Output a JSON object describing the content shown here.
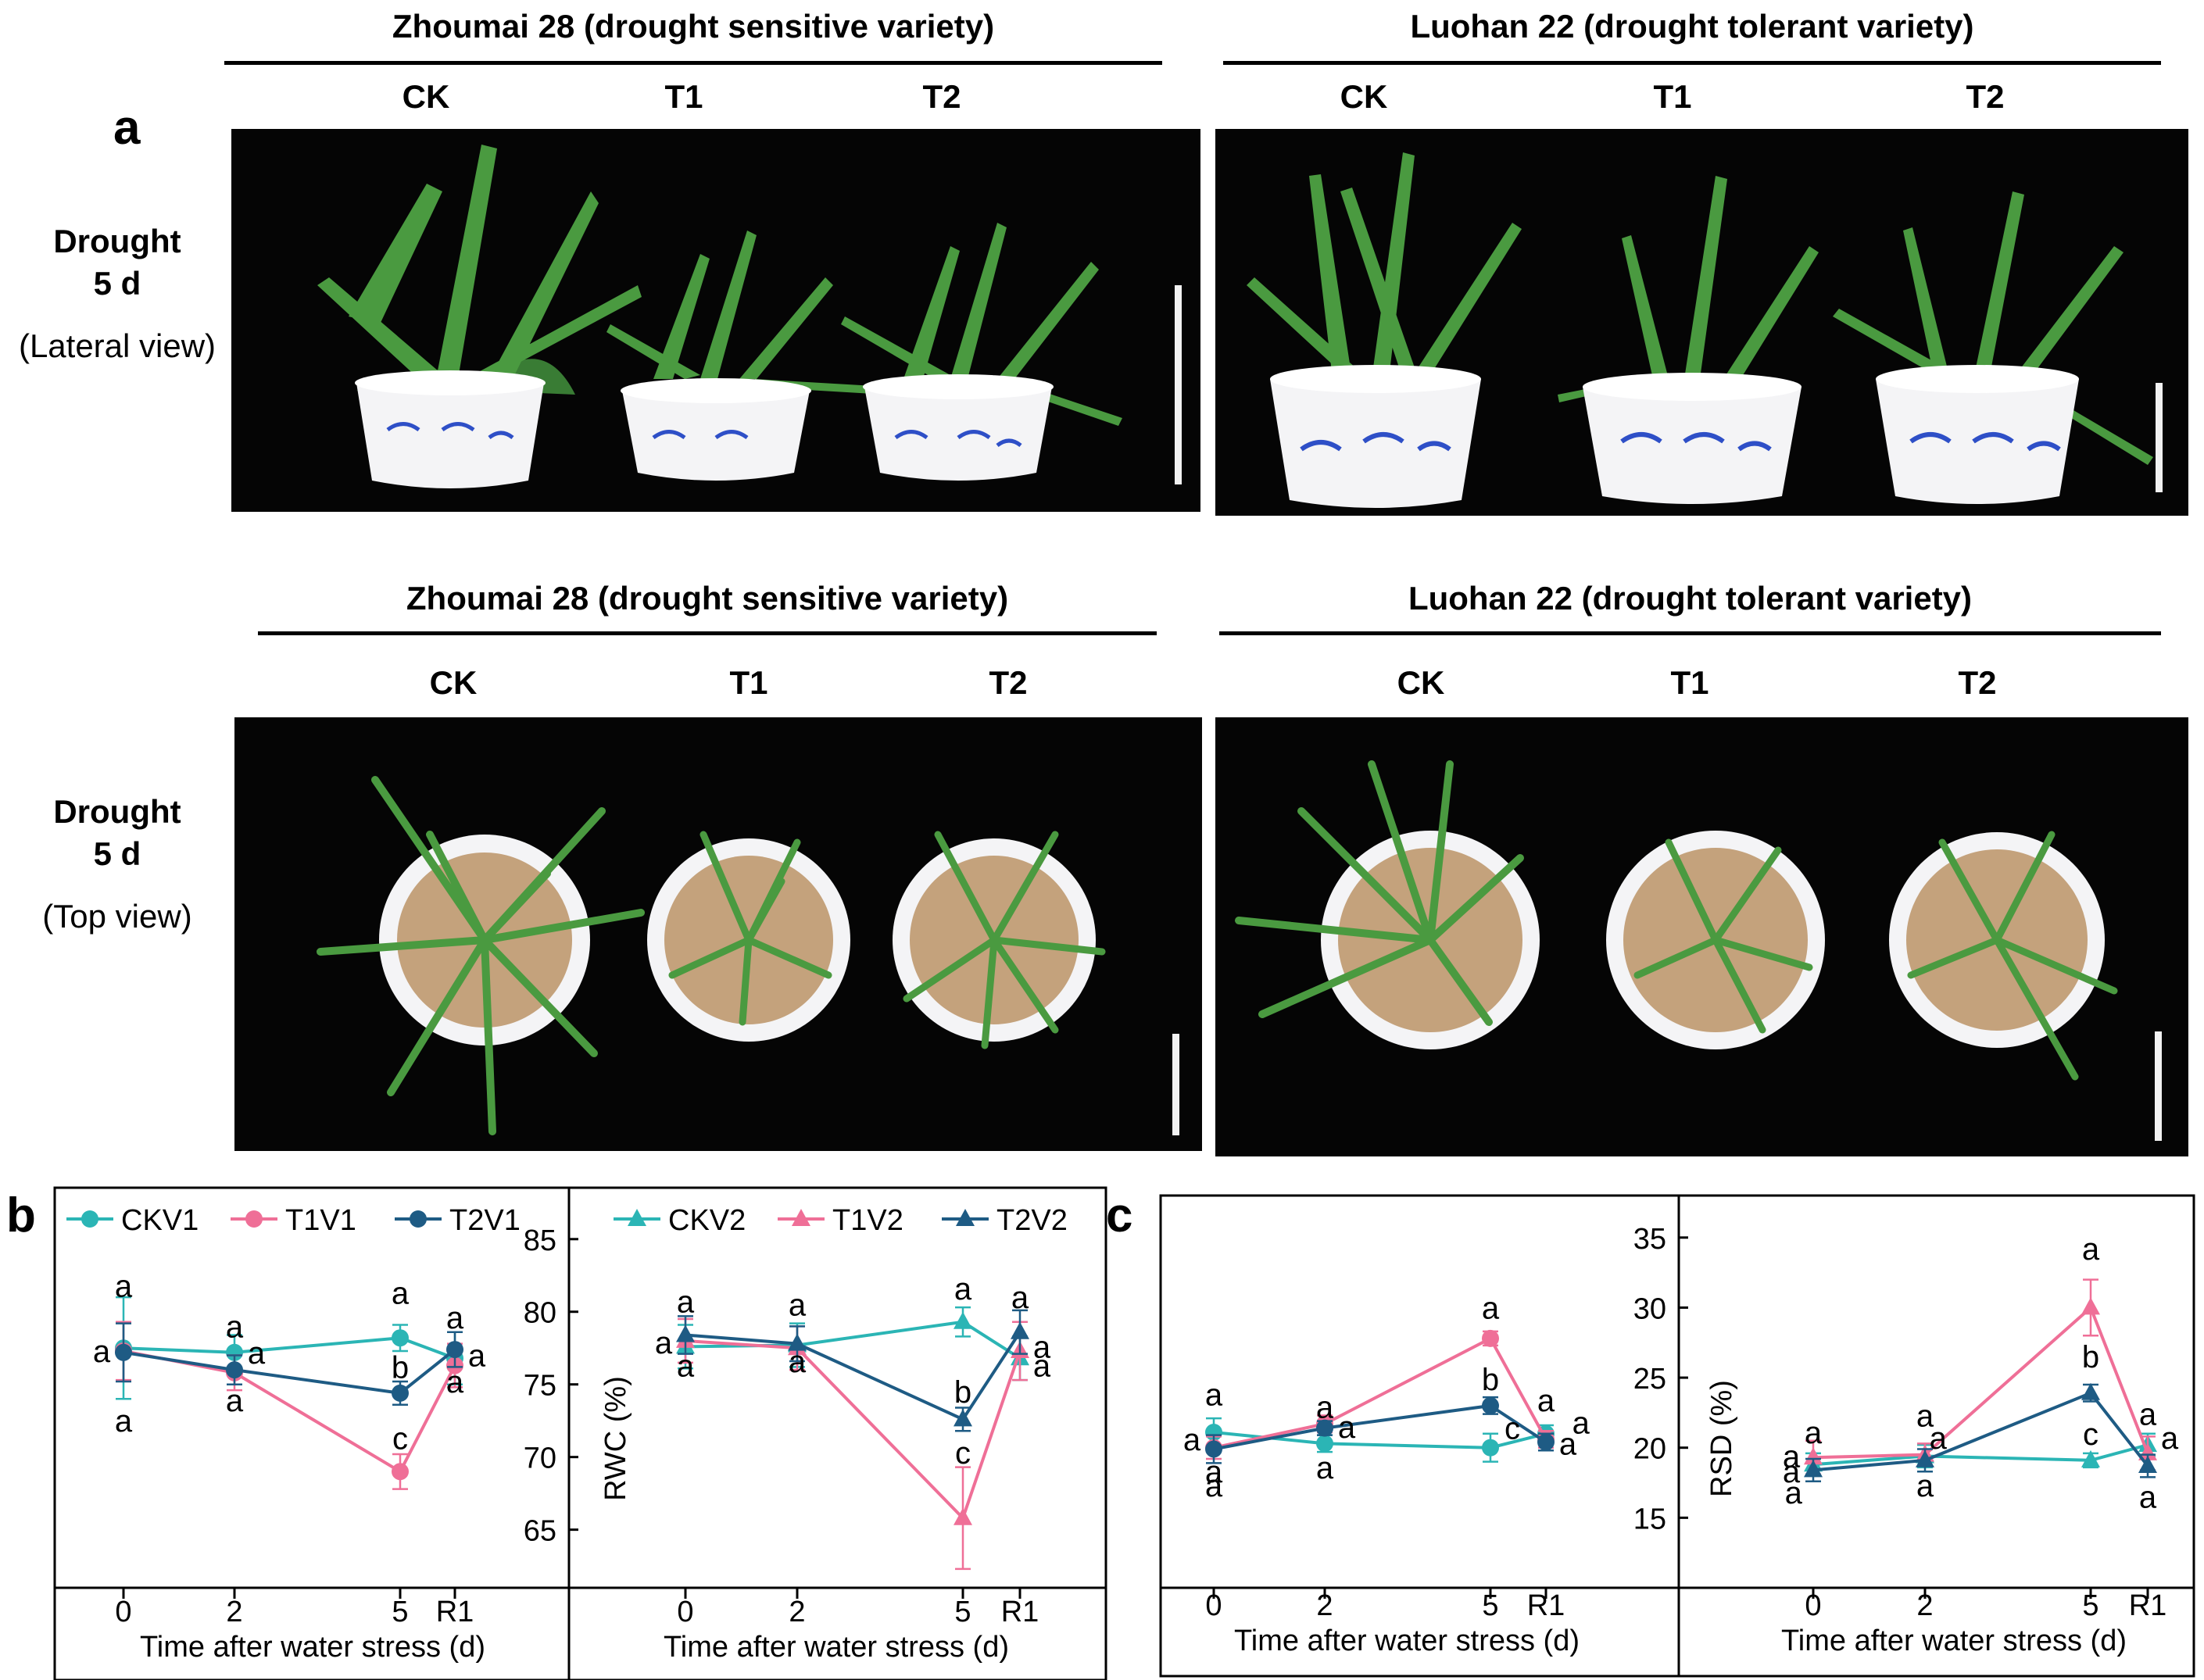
{
  "panel_a": {
    "letter": "a",
    "groups": [
      {
        "title": "Zhoumai 28 (drought sensitive variety)",
        "cols": [
          "CK",
          "T1",
          "T2"
        ]
      },
      {
        "title": "Luohan 22 (drought tolerant variety)",
        "cols": [
          "CK",
          "T1",
          "T2"
        ]
      }
    ],
    "rows": [
      {
        "label": "Drought",
        "days": "5 d",
        "view": "(Lateral view)"
      },
      {
        "label": "Drought",
        "days": "5 d",
        "view": "(Top view)"
      }
    ]
  },
  "panel_b": {
    "letter": "b"
  },
  "panel_c": {
    "letter": "c"
  },
  "colors": {
    "ck": "#2bb5b5",
    "t1": "#ef6f97",
    "t2": "#1e5b84",
    "leaf": "#3f8a3a",
    "soil": "#c4a27c",
    "pot_pattern": "#2e4fc7"
  },
  "chart_data": [
    {
      "type": "line",
      "id": "b-left",
      "categories": [
        "0",
        "2",
        "5",
        "R1"
      ],
      "xlabel": "Time after water stress (d)",
      "ylabel": "",
      "ylim": [
        61,
        88
      ],
      "yticks": [],
      "legend": [
        "CKV1",
        "T1V1",
        "T2V1"
      ],
      "marker": "circle",
      "series": [
        {
          "name": "CKV1",
          "color": "#2bb5b5",
          "values": [
            77.5,
            77.2,
            78.2,
            76.8
          ],
          "err": [
            3.5,
            1.2,
            0.9,
            1.8
          ]
        },
        {
          "name": "T1V1",
          "color": "#ef6f97",
          "values": [
            77.3,
            75.8,
            69.0,
            76.3
          ],
          "err": [
            2.0,
            1.2,
            1.2,
            1.5
          ]
        },
        {
          "name": "T2V1",
          "color": "#1e5b84",
          "values": [
            77.2,
            76.0,
            74.4,
            77.4
          ],
          "err": [
            2.0,
            1.0,
            0.8,
            1.2
          ]
        }
      ],
      "letters": [
        {
          "text": "a",
          "cat": 0,
          "y": 81.8
        },
        {
          "text": "a",
          "cat": 0,
          "y": 72.5
        },
        {
          "text": "a",
          "cat": 0,
          "y": 77.3,
          "dx": -1
        },
        {
          "text": "a",
          "cat": 1,
          "y": 79.0
        },
        {
          "text": "a",
          "cat": 1,
          "y": 73.9
        },
        {
          "text": "a",
          "cat": 1,
          "y": 77.2,
          "dx": 1
        },
        {
          "text": "a",
          "cat": 2,
          "y": 81.3
        },
        {
          "text": "b",
          "cat": 2,
          "y": 76.2
        },
        {
          "text": "c",
          "cat": 2,
          "y": 71.3
        },
        {
          "text": "a",
          "cat": 3,
          "y": 79.6
        },
        {
          "text": "a",
          "cat": 3,
          "y": 77.0,
          "dx": 1
        },
        {
          "text": "a",
          "cat": 3,
          "y": 75.2
        }
      ]
    },
    {
      "type": "line",
      "id": "b-right",
      "categories": [
        "0",
        "2",
        "5",
        "R1"
      ],
      "xlabel": "Time after water stress (d)",
      "ylabel": "RWC (%)",
      "ylim": [
        61,
        88
      ],
      "yticks": [
        65,
        70,
        75,
        80,
        85
      ],
      "legend": [
        "CKV2",
        "T1V2",
        "T2V2"
      ],
      "marker": "triangle",
      "series": [
        {
          "name": "CKV2",
          "color": "#2bb5b5",
          "values": [
            77.6,
            77.7,
            79.3,
            76.8
          ],
          "err": [
            1.5,
            1.5,
            1.0,
            1.5
          ]
        },
        {
          "name": "T1V2",
          "color": "#ef6f97",
          "values": [
            78.0,
            77.5,
            65.8,
            77.3
          ],
          "err": [
            1.5,
            1.5,
            3.5,
            2.0
          ]
        },
        {
          "name": "T2V2",
          "color": "#1e5b84",
          "values": [
            78.4,
            77.8,
            72.6,
            78.6
          ],
          "err": [
            1.3,
            1.2,
            0.8,
            1.5
          ]
        }
      ],
      "letters": [
        {
          "text": "a",
          "cat": 0,
          "y": 80.7
        },
        {
          "text": "a",
          "cat": 0,
          "y": 77.9,
          "dx": -1
        },
        {
          "text": "a",
          "cat": 0,
          "y": 76.3
        },
        {
          "text": "a",
          "cat": 1,
          "y": 80.5
        },
        {
          "text": "a",
          "cat": 1,
          "y": 76.6
        },
        {
          "text": "a",
          "cat": 2,
          "y": 81.6
        },
        {
          "text": "b",
          "cat": 2,
          "y": 74.5
        },
        {
          "text": "c",
          "cat": 2,
          "y": 70.3
        },
        {
          "text": "a",
          "cat": 3,
          "y": 81.0
        },
        {
          "text": "a",
          "cat": 3,
          "y": 77.6,
          "dx": 1
        },
        {
          "text": "a",
          "cat": 3,
          "y": 76.3,
          "dx": 1
        }
      ]
    },
    {
      "type": "line",
      "id": "c-left",
      "categories": [
        "0",
        "2",
        "5",
        "R1"
      ],
      "xlabel": "Time after water stress (d)",
      "ylabel": "",
      "ylim": [
        10,
        38
      ],
      "yticks": [],
      "legend": [],
      "marker": "circle",
      "series": [
        {
          "name": "CKV1",
          "color": "#2bb5b5",
          "values": [
            21.1,
            20.3,
            20.0,
            21.0
          ],
          "err": [
            1.0,
            0.6,
            1.0,
            0.6
          ]
        },
        {
          "name": "T1V1",
          "color": "#ef6f97",
          "values": [
            20.0,
            21.7,
            27.8,
            20.6
          ],
          "err": [
            0.8,
            0.6,
            0.5,
            0.6
          ]
        },
        {
          "name": "T2V1",
          "color": "#1e5b84",
          "values": [
            19.9,
            21.4,
            23.0,
            20.4
          ],
          "err": [
            1.0,
            0.5,
            0.6,
            0.6
          ]
        }
      ],
      "letters": [
        {
          "text": "a",
          "cat": 0,
          "y": 23.8
        },
        {
          "text": "a",
          "cat": 0,
          "y": 20.6,
          "dx": -1
        },
        {
          "text": "a",
          "cat": 0,
          "y": 18.3
        },
        {
          "text": "a",
          "cat": 0,
          "y": 17.3
        },
        {
          "text": "a",
          "cat": 1,
          "y": 22.9
        },
        {
          "text": "a",
          "cat": 1,
          "y": 21.5,
          "dx": 1
        },
        {
          "text": "a",
          "cat": 1,
          "y": 18.6
        },
        {
          "text": "a",
          "cat": 2,
          "y": 30.0
        },
        {
          "text": "b",
          "cat": 2,
          "y": 24.9
        },
        {
          "text": "c",
          "cat": 2,
          "y": 21.4,
          "dx": 1
        },
        {
          "text": "a",
          "cat": 3,
          "y": 23.4
        },
        {
          "text": "a",
          "cat": 3,
          "y": 21.8,
          "dx": 1.6
        },
        {
          "text": "a",
          "cat": 3,
          "y": 20.3,
          "dx": 1
        }
      ]
    },
    {
      "type": "line",
      "id": "c-right",
      "categories": [
        "0",
        "2",
        "5",
        "R1"
      ],
      "xlabel": "Time after water stress (d)",
      "ylabel": "RSD (%)",
      "ylim": [
        10,
        38
      ],
      "yticks": [
        15,
        20,
        25,
        30,
        35
      ],
      "legend": [],
      "marker": "triangle",
      "series": [
        {
          "name": "CKV2",
          "color": "#2bb5b5",
          "values": [
            18.8,
            19.4,
            19.1,
            20.2
          ],
          "err": [
            0.8,
            0.8,
            0.5,
            0.8
          ]
        },
        {
          "name": "T1V2",
          "color": "#ef6f97",
          "values": [
            19.3,
            19.5,
            30.0,
            19.6
          ],
          "err": [
            1.2,
            0.8,
            2.0,
            1.2
          ]
        },
        {
          "name": "T2V2",
          "color": "#1e5b84",
          "values": [
            18.4,
            19.1,
            23.9,
            18.7
          ],
          "err": [
            0.8,
            0.8,
            0.6,
            0.8
          ]
        }
      ],
      "letters": [
        {
          "text": "a",
          "cat": 0,
          "y": 21.1
        },
        {
          "text": "a",
          "cat": 0,
          "y": 19.4,
          "dx": -1
        },
        {
          "text": "a",
          "cat": 0,
          "y": 18.3,
          "dx": -1
        },
        {
          "text": "a",
          "cat": 0,
          "y": 16.8,
          "dx": -0.9
        },
        {
          "text": "a",
          "cat": 1,
          "y": 22.3
        },
        {
          "text": "a",
          "cat": 1,
          "y": 20.7,
          "dx": 0.6
        },
        {
          "text": "a",
          "cat": 1,
          "y": 17.3
        },
        {
          "text": "a",
          "cat": 2,
          "y": 34.2
        },
        {
          "text": "b",
          "cat": 2,
          "y": 26.5
        },
        {
          "text": "c",
          "cat": 2,
          "y": 21.0
        },
        {
          "text": "a",
          "cat": 3,
          "y": 22.4
        },
        {
          "text": "a",
          "cat": 3,
          "y": 20.7,
          "dx": 1
        },
        {
          "text": "a",
          "cat": 3,
          "y": 16.5
        }
      ]
    }
  ]
}
